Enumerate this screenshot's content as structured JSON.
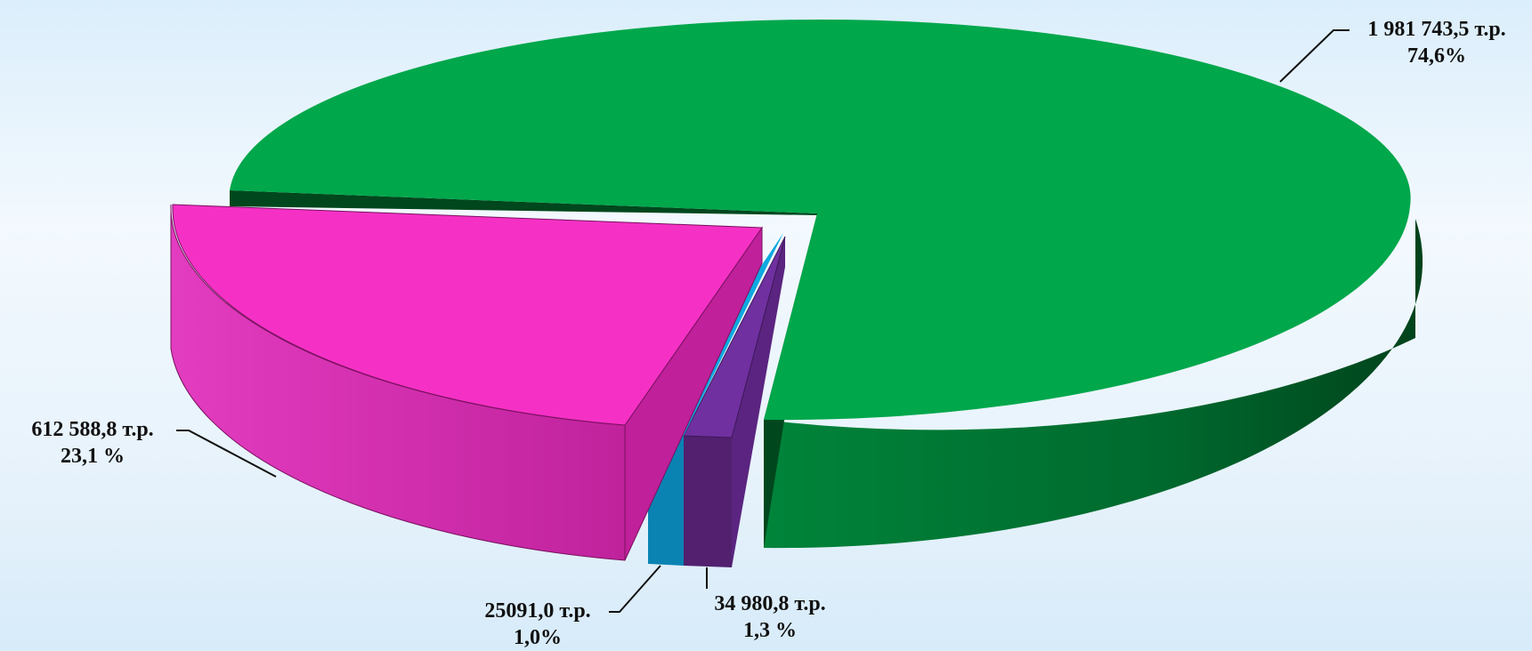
{
  "chart_data": {
    "type": "pie",
    "style": "3d-exploded",
    "title": "",
    "legend": "none",
    "slices": [
      {
        "value": 1981743.5,
        "value_label": "1 981 743,5 т.р.",
        "percent": 74.6,
        "percent_label": "74,6%",
        "color": "#00a74b",
        "side_color": "#005a26"
      },
      {
        "value": 34980.8,
        "value_label": "34 980,8 т.р.",
        "percent": 1.3,
        "percent_label": "1,3 %",
        "color": "#7030a0",
        "side_color": "#4c1f72"
      },
      {
        "value": 25091.0,
        "value_label": "25091,0 т.р.",
        "percent": 1.0,
        "percent_label": "1,0%",
        "color": "#0fa8e0",
        "side_color": "#057aa6"
      },
      {
        "value": 612588.8,
        "value_label": "612 588,8 т.р.",
        "percent": 23.1,
        "percent_label": "23,1 %",
        "color": "#f531c5",
        "side_color": "#c0209a"
      }
    ]
  }
}
